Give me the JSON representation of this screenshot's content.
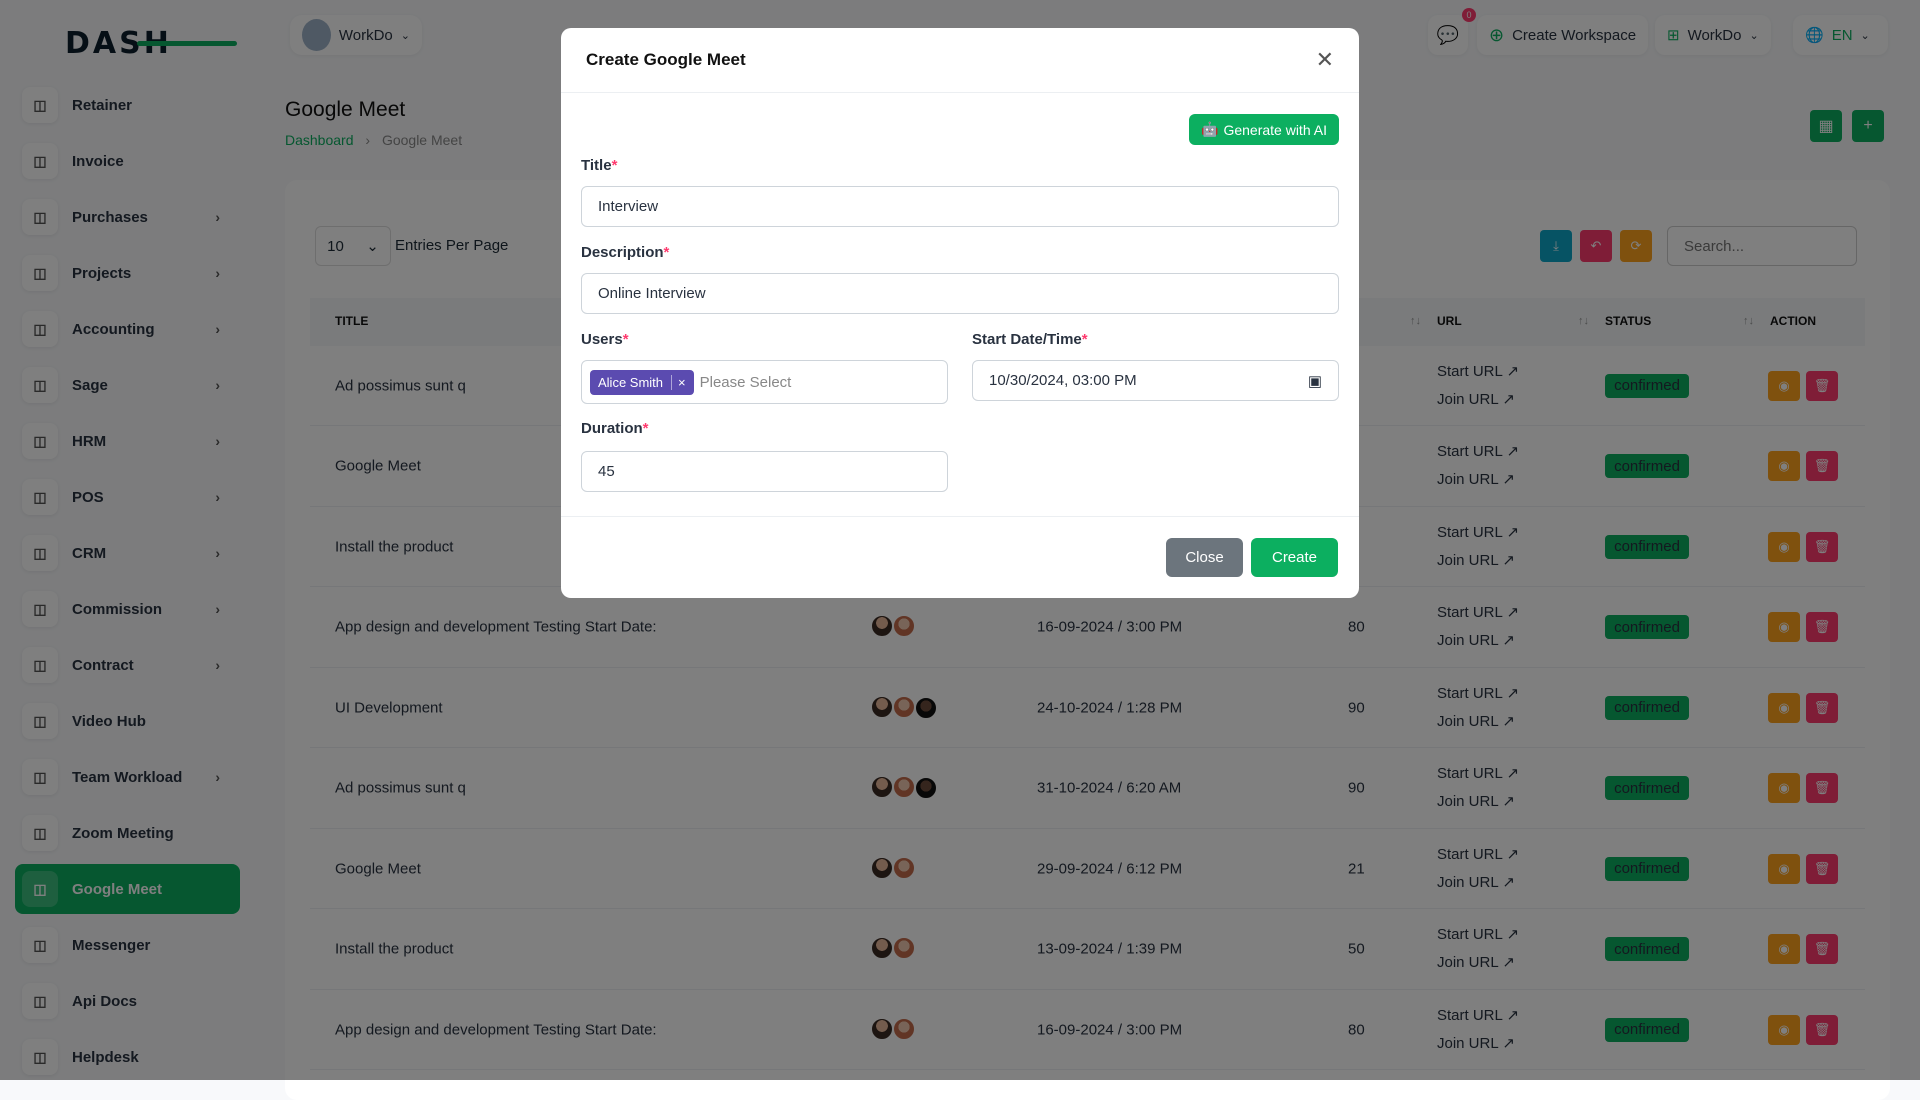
{
  "brand": {
    "logo_text": "DASH",
    "accent": "#0caf60"
  },
  "header": {
    "workspace": "WorkDo",
    "notification_count": "0",
    "create_workspace": "Create Workspace",
    "workspace_switch": "WorkDo",
    "language": "EN"
  },
  "sidebar": {
    "items": [
      {
        "label": "Retainer",
        "icon": "retainer-icon",
        "chevron": false
      },
      {
        "label": "Invoice",
        "icon": "invoice-icon",
        "chevron": false
      },
      {
        "label": "Purchases",
        "icon": "cart-icon",
        "chevron": true
      },
      {
        "label": "Projects",
        "icon": "projects-icon",
        "chevron": true
      },
      {
        "label": "Accounting",
        "icon": "accounting-icon",
        "chevron": true
      },
      {
        "label": "Sage",
        "icon": "sage-icon",
        "chevron": true
      },
      {
        "label": "HRM",
        "icon": "hrm-icon",
        "chevron": true
      },
      {
        "label": "POS",
        "icon": "pos-icon",
        "chevron": true
      },
      {
        "label": "CRM",
        "icon": "crm-icon",
        "chevron": true
      },
      {
        "label": "Commission",
        "icon": "commission-icon",
        "chevron": true
      },
      {
        "label": "Contract",
        "icon": "contract-icon",
        "chevron": true
      },
      {
        "label": "Video Hub",
        "icon": "video-icon",
        "chevron": false
      },
      {
        "label": "Team Workload",
        "icon": "workload-icon",
        "chevron": true
      },
      {
        "label": "Zoom Meeting",
        "icon": "zoom-icon",
        "chevron": false
      },
      {
        "label": "Google Meet",
        "icon": "google-meet-icon",
        "chevron": false,
        "active": true
      },
      {
        "label": "Messenger",
        "icon": "messenger-icon",
        "chevron": false
      },
      {
        "label": "Api Docs",
        "icon": "api-icon",
        "chevron": false
      },
      {
        "label": "Helpdesk",
        "icon": "helpdesk-icon",
        "chevron": false
      }
    ]
  },
  "page": {
    "title": "Google Meet",
    "breadcrumb": [
      "Dashboard",
      "Google Meet"
    ]
  },
  "table": {
    "entries": "10",
    "entries_label": "Entries Per Page",
    "search_placeholder": "Search...",
    "headers": {
      "title": "TITLE",
      "url": "URL",
      "status": "STATUS",
      "action": "ACTION"
    },
    "start_url": "Start URL",
    "join_url": "Join URL",
    "rows": [
      {
        "title": "Ad possimus sunt q",
        "avatars": 0,
        "date": "",
        "duration": "",
        "status": "confirmed"
      },
      {
        "title": "Google Meet",
        "avatars": 0,
        "date": "",
        "duration": "",
        "status": "confirmed"
      },
      {
        "title": "Install the product",
        "avatars": 0,
        "date": "",
        "duration": "",
        "status": "confirmed"
      },
      {
        "title": "App design and development Testing Start Date:",
        "avatars": 2,
        "date": "16-09-2024 / 3:00 PM",
        "duration": "80",
        "status": "confirmed"
      },
      {
        "title": "UI Development",
        "avatars": 3,
        "date": "24-10-2024 / 1:28 PM",
        "duration": "90",
        "status": "confirmed"
      },
      {
        "title": "Ad possimus sunt q",
        "avatars": 3,
        "date": "31-10-2024 / 6:20 AM",
        "duration": "90",
        "status": "confirmed"
      },
      {
        "title": "Google Meet",
        "avatars": 2,
        "date": "29-09-2024 / 6:12 PM",
        "duration": "21",
        "status": "confirmed"
      },
      {
        "title": "Install the product",
        "avatars": 2,
        "date": "13-09-2024 / 1:39 PM",
        "duration": "50",
        "status": "confirmed"
      },
      {
        "title": "App design and development Testing Start Date:",
        "avatars": 2,
        "date": "16-09-2024 / 3:00 PM",
        "duration": "80",
        "status": "confirmed"
      }
    ]
  },
  "modal": {
    "title": "Create Google Meet",
    "generate_ai": "Generate with AI",
    "title_label": "Title",
    "title_value": "Interview",
    "description_label": "Description",
    "description_value": "Online Interview",
    "users_label": "Users",
    "selected_user": "Alice Smith",
    "users_placeholder": "Please Select",
    "start_label": "Start Date/Time",
    "start_value": "10/30/2024, 03:00 PM",
    "duration_label": "Duration",
    "duration_value": "45",
    "close": "Close",
    "create": "Create",
    "required_mark": "*"
  }
}
